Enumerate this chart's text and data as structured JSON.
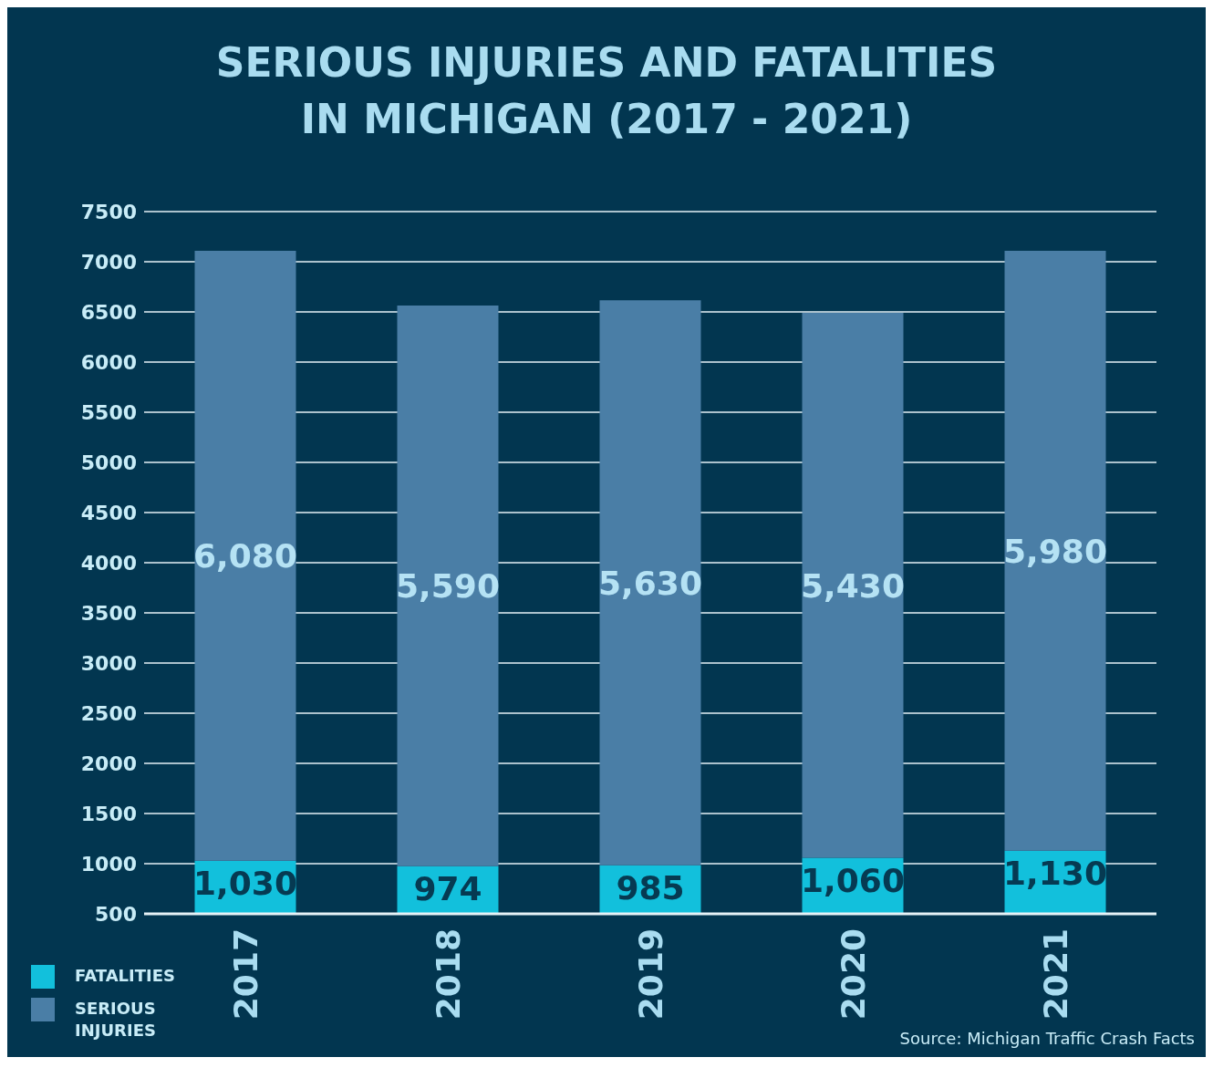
{
  "chart_data": {
    "type": "bar",
    "title": "SERIOUS INJURIES AND FATALITIES\nIN MICHIGAN (2017 - 2021)",
    "categories": [
      "2017",
      "2018",
      "2019",
      "2020",
      "2021"
    ],
    "stacked": true,
    "series": [
      {
        "name": "FATALITIES",
        "color": "#12c0dc",
        "values": [
          1030,
          974,
          985,
          1060,
          1130
        ],
        "value_labels": [
          "1,030",
          "974",
          "985",
          "1,060",
          "1,130"
        ]
      },
      {
        "name": "SERIOUS INJURIES",
        "color": "#4a7ea6",
        "values": [
          6080,
          5590,
          5630,
          5430,
          5980
        ],
        "value_labels": [
          "6,080",
          "5,590",
          "5,630",
          "5,430",
          "5,980"
        ]
      }
    ],
    "ylim": [
      500,
      7500
    ],
    "yticks": [
      500,
      1000,
      1500,
      2000,
      2500,
      3000,
      3500,
      4000,
      4500,
      5000,
      5500,
      6000,
      6500,
      7000,
      7500
    ],
    "grid": "y",
    "legend": "bottom left",
    "annotations": [
      "Source: Michigan Traffic Crash Facts"
    ]
  }
}
